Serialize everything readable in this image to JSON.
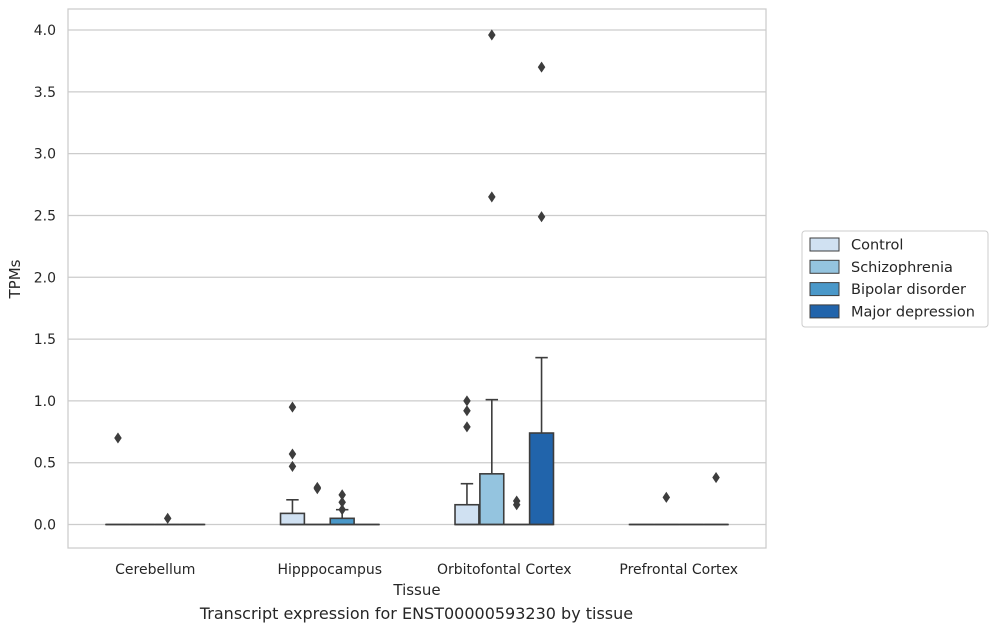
{
  "chart_data": {
    "type": "box",
    "xlabel": "Tissue",
    "ylabel": "TPMs",
    "caption": "Transcript expression for ENST00000593230 by tissue",
    "ylim": [
      -0.19,
      4.17
    ],
    "yticks": [
      0.0,
      0.5,
      1.0,
      1.5,
      2.0,
      2.5,
      3.0,
      3.5,
      4.0
    ],
    "ytick_labels": [
      "0.0",
      "0.5",
      "1.0",
      "1.5",
      "2.0",
      "2.5",
      "3.0",
      "3.5",
      "4.0"
    ],
    "categories": [
      "Cerebellum",
      "Hipppocampus",
      "Orbitofontal Cortex",
      "Prefrontal Cortex"
    ],
    "grid": true,
    "legend_position": "right",
    "series": [
      {
        "name": "Control",
        "color": "#d0e1f2",
        "boxes": [
          {
            "q1": 0,
            "median": 0,
            "q3": 0,
            "whisker_low": 0,
            "whisker_high": 0,
            "outliers": [
              0.7
            ]
          },
          {
            "q1": 0,
            "median": 0,
            "q3": 0.09,
            "whisker_low": 0,
            "whisker_high": 0.2,
            "outliers": [
              0.95,
              0.57,
              0.47
            ]
          },
          {
            "q1": 0,
            "median": 0,
            "q3": 0.16,
            "whisker_low": 0,
            "whisker_high": 0.33,
            "outliers": [
              1.0,
              0.92,
              0.79
            ]
          },
          {
            "q1": 0,
            "median": 0,
            "q3": 0,
            "whisker_low": 0,
            "whisker_high": 0,
            "outliers": []
          }
        ]
      },
      {
        "name": "Schizophrenia",
        "color": "#94c4df",
        "boxes": [
          {
            "q1": 0,
            "median": 0,
            "q3": 0,
            "whisker_low": 0,
            "whisker_high": 0,
            "outliers": []
          },
          {
            "q1": 0,
            "median": 0,
            "q3": 0,
            "whisker_low": 0,
            "whisker_high": 0,
            "outliers": [
              0.3,
              0.29
            ]
          },
          {
            "q1": 0,
            "median": 0,
            "q3": 0.41,
            "whisker_low": 0,
            "whisker_high": 1.01,
            "outliers": [
              3.96,
              2.65
            ]
          },
          {
            "q1": 0,
            "median": 0,
            "q3": 0,
            "whisker_low": 0,
            "whisker_high": 0,
            "outliers": [
              0.22
            ]
          }
        ]
      },
      {
        "name": "Bipolar disorder",
        "color": "#4a98c9",
        "boxes": [
          {
            "q1": 0,
            "median": 0,
            "q3": 0,
            "whisker_low": 0,
            "whisker_high": 0,
            "outliers": [
              0.05
            ]
          },
          {
            "q1": 0,
            "median": 0,
            "q3": 0.05,
            "whisker_low": 0,
            "whisker_high": 0.12,
            "outliers": [
              0.24,
              0.18,
              0.12
            ]
          },
          {
            "q1": 0,
            "median": 0,
            "q3": 0,
            "whisker_low": 0,
            "whisker_high": 0,
            "outliers": [
              0.19,
              0.16
            ]
          },
          {
            "q1": 0,
            "median": 0,
            "q3": 0,
            "whisker_low": 0,
            "whisker_high": 0,
            "outliers": []
          }
        ]
      },
      {
        "name": "Major depression",
        "color": "#2164ab",
        "boxes": [
          {
            "q1": 0,
            "median": 0,
            "q3": 0,
            "whisker_low": 0,
            "whisker_high": 0,
            "outliers": []
          },
          {
            "q1": 0,
            "median": 0,
            "q3": 0,
            "whisker_low": 0,
            "whisker_high": 0,
            "outliers": []
          },
          {
            "q1": 0,
            "median": 0,
            "q3": 0.74,
            "whisker_low": 0,
            "whisker_high": 1.35,
            "outliers": [
              3.7,
              2.49
            ]
          },
          {
            "q1": 0,
            "median": 0,
            "q3": 0,
            "whisker_low": 0,
            "whisker_high": 0,
            "outliers": [
              0.38
            ]
          }
        ]
      }
    ]
  }
}
